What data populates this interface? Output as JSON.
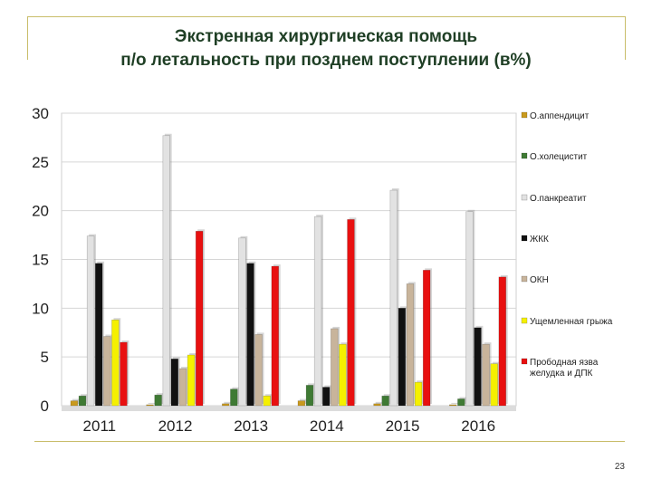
{
  "slide": {
    "title_line1": "Экстренная хирургическая помощь",
    "title_line2": "п/о летальность при позднем поступлении (в%)",
    "page_number": "23"
  },
  "chart_data": {
    "type": "bar",
    "title": "",
    "xlabel": "",
    "ylabel": "",
    "categories": [
      "2011",
      "2012",
      "2013",
      "2014",
      "2015",
      "2016"
    ],
    "ylim": [
      0,
      30
    ],
    "yticks": [
      "0",
      "5",
      "10",
      "15",
      "20",
      "25",
      "30"
    ],
    "grid": true,
    "legend_position": "right",
    "series": [
      {
        "name": "О.аппендицит",
        "color": "#c99a1e",
        "values": [
          0.5,
          0.1,
          0.2,
          0.5,
          0.2,
          0.1
        ]
      },
      {
        "name": "О.холецистит",
        "color": "#3f7a34",
        "values": [
          1.0,
          1.1,
          1.7,
          2.1,
          1.0,
          0.7
        ]
      },
      {
        "name": "О.панкреатит",
        "color": "#e2e2e2",
        "values": [
          17.4,
          27.7,
          17.2,
          19.4,
          22.1,
          19.9
        ]
      },
      {
        "name": "ЖКК",
        "color": "#111111",
        "values": [
          14.6,
          4.8,
          14.6,
          1.9,
          10.0,
          8.0
        ]
      },
      {
        "name": "ОКН",
        "color": "#c8b49b",
        "values": [
          7.1,
          3.8,
          7.3,
          7.9,
          12.5,
          6.3
        ]
      },
      {
        "name": "Ущемленная грыжа",
        "color": "#f5f000",
        "values": [
          8.8,
          5.2,
          1.0,
          6.3,
          2.4,
          4.3
        ]
      },
      {
        "name": "Прободная язва желудка и ДПК",
        "color": "#e81010",
        "values": [
          6.5,
          17.9,
          14.3,
          19.1,
          13.9,
          13.2
        ]
      }
    ]
  }
}
